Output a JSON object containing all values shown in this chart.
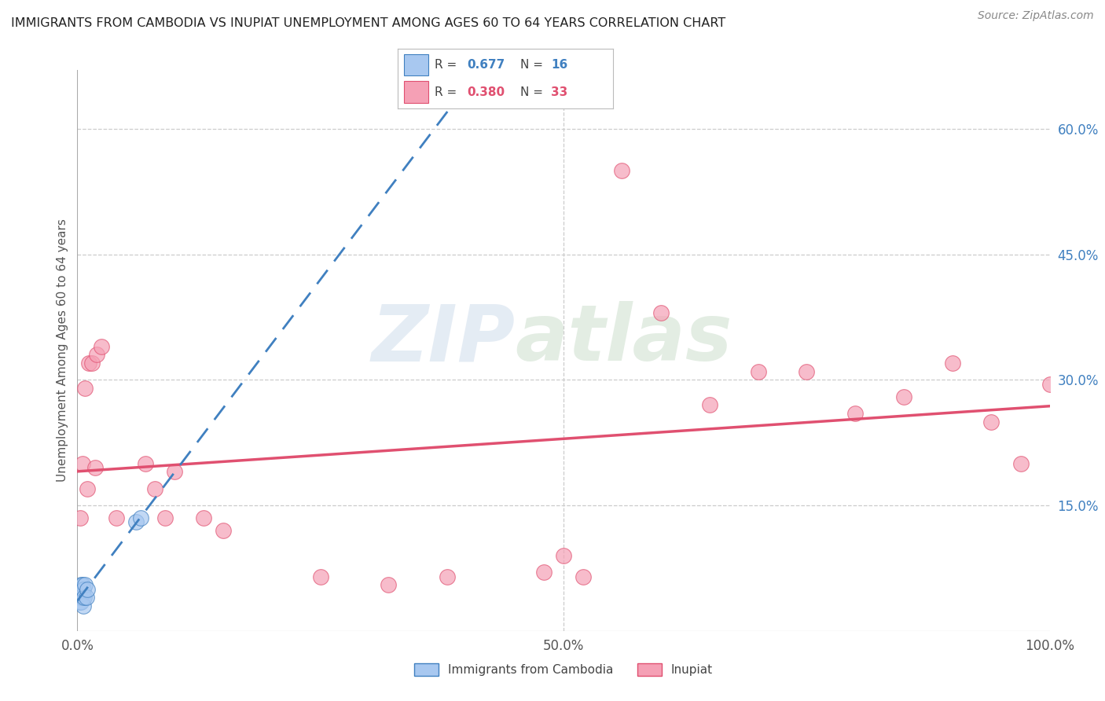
{
  "title": "IMMIGRANTS FROM CAMBODIA VS INUPIAT UNEMPLOYMENT AMONG AGES 60 TO 64 YEARS CORRELATION CHART",
  "source": "Source: ZipAtlas.com",
  "ylabel": "Unemployment Among Ages 60 to 64 years",
  "xlim": [
    0,
    1.0
  ],
  "ylim": [
    0,
    0.67
  ],
  "xtick_positions": [
    0.0,
    0.5,
    1.0
  ],
  "xtick_labels": [
    "0.0%",
    "50.0%",
    "100.0%"
  ],
  "ytick_positions": [
    0.15,
    0.3,
    0.45,
    0.6
  ],
  "ytick_labels": [
    "15.0%",
    "30.0%",
    "45.0%",
    "60.0%"
  ],
  "cambodia_x": [
    0.002,
    0.003,
    0.003,
    0.004,
    0.004,
    0.005,
    0.005,
    0.005,
    0.006,
    0.006,
    0.007,
    0.008,
    0.009,
    0.01,
    0.06,
    0.065
  ],
  "cambodia_y": [
    0.035,
    0.04,
    0.05,
    0.035,
    0.055,
    0.04,
    0.045,
    0.055,
    0.03,
    0.05,
    0.04,
    0.055,
    0.04,
    0.05,
    0.13,
    0.135
  ],
  "inupiat_x": [
    0.003,
    0.005,
    0.008,
    0.01,
    0.012,
    0.015,
    0.018,
    0.02,
    0.025,
    0.04,
    0.07,
    0.08,
    0.09,
    0.1,
    0.13,
    0.15,
    0.25,
    0.32,
    0.38,
    0.48,
    0.5,
    0.52,
    0.56,
    0.6,
    0.65,
    0.7,
    0.75,
    0.8,
    0.85,
    0.9,
    0.94,
    0.97,
    1.0
  ],
  "inupiat_y": [
    0.135,
    0.2,
    0.29,
    0.17,
    0.32,
    0.32,
    0.195,
    0.33,
    0.34,
    0.135,
    0.2,
    0.17,
    0.135,
    0.19,
    0.135,
    0.12,
    0.065,
    0.055,
    0.065,
    0.07,
    0.09,
    0.065,
    0.55,
    0.38,
    0.27,
    0.31,
    0.31,
    0.26,
    0.28,
    0.32,
    0.25,
    0.2,
    0.295
  ],
  "cambodia_color": "#A8C8F0",
  "inupiat_color": "#F5A0B5",
  "cambodia_line_color": "#4080C0",
  "inupiat_line_color": "#E05070",
  "cambodia_r": 0.677,
  "cambodia_n": 16,
  "inupiat_r": 0.38,
  "inupiat_n": 33,
  "watermark_zip": "ZIP",
  "watermark_atlas": "atlas",
  "grid_color": "#CCCCCC",
  "background_color": "#FFFFFF"
}
